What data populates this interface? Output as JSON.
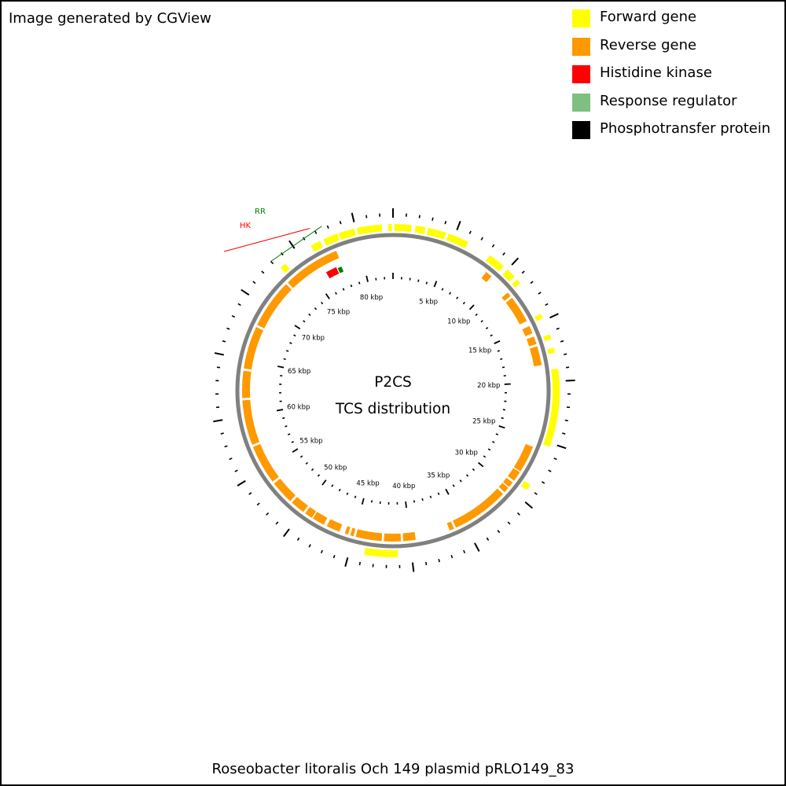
{
  "header": {
    "credit": "Image generated by CGView"
  },
  "legend": [
    {
      "label": "Forward gene",
      "color": "#ffff00"
    },
    {
      "label": "Reverse gene",
      "color": "#ff9900"
    },
    {
      "label": "Histidine kinase",
      "color": "#ff0000"
    },
    {
      "label": "Response regulator",
      "color": "#7fbf7f"
    },
    {
      "label": "Phosphotransfer protein",
      "color": "#000000"
    }
  ],
  "map": {
    "title_line1": "P2CS",
    "title_line2": "TCS distribution",
    "caption": "Roseobacter litoralis Och 149 plasmid pRLO149_83",
    "total_kbp": 83,
    "backbone_color": "#808080",
    "scale_labels": [
      "5 kbp",
      "10 kbp",
      "15 kbp",
      "20 kbp",
      "25 kbp",
      "30 kbp",
      "35 kbp",
      "40 kbp",
      "45 kbp",
      "50 kbp",
      "55 kbp",
      "60 kbp",
      "65 kbp",
      "70 kbp",
      "75 kbp",
      "80 kbp"
    ],
    "scale_positions_kbp": [
      5,
      10,
      15,
      20,
      25,
      30,
      35,
      40,
      45,
      50,
      55,
      60,
      65,
      70,
      75,
      80
    ],
    "feature_labels": [
      {
        "label": "HK",
        "color": "#ff0000"
      },
      {
        "label": "RR",
        "color": "#008000"
      }
    ],
    "forward_genes_kbp": [
      [
        0.1,
        1.5
      ],
      [
        1.8,
        2.6
      ],
      [
        2.8,
        4.3
      ],
      [
        4.5,
        6.2
      ],
      [
        8.2,
        9.6
      ],
      [
        10.0,
        10.8
      ],
      [
        11.1,
        11.5
      ],
      [
        14.4,
        14.8
      ],
      [
        16.2,
        16.6
      ],
      [
        17.3,
        17.7
      ],
      [
        19.0,
        25.3
      ],
      [
        28.7,
        29.2
      ],
      [
        41.1,
        43.8
      ],
      [
        73.2,
        73.7
      ],
      [
        76.2,
        77.0
      ],
      [
        77.3,
        78.5
      ],
      [
        78.6,
        79.9
      ],
      [
        80.1,
        82.1
      ],
      [
        82.6,
        82.9
      ]
    ],
    "reverse_genes_kbp": [
      [
        8.8,
        9.4
      ],
      [
        11.4,
        11.8
      ],
      [
        12.0,
        14.4
      ],
      [
        14.9,
        15.6
      ],
      [
        15.9,
        16.6
      ],
      [
        16.8,
        18.5
      ],
      [
        25.8,
        28.2
      ],
      [
        28.3,
        29.2
      ],
      [
        29.4,
        29.9
      ],
      [
        30.0,
        30.5
      ],
      [
        30.7,
        35.8
      ],
      [
        36.0,
        36.4
      ],
      [
        39.5,
        40.6
      ],
      [
        40.8,
        42.3
      ],
      [
        42.5,
        44.8
      ],
      [
        45.0,
        45.3
      ],
      [
        45.5,
        45.8
      ],
      [
        46.3,
        47.5
      ],
      [
        47.8,
        48.9
      ],
      [
        49.0,
        49.7
      ],
      [
        49.9,
        51.2
      ],
      [
        51.4,
        53.5
      ],
      [
        53.7,
        57.2
      ],
      [
        57.4,
        61.4
      ],
      [
        61.6,
        64.0
      ],
      [
        64.2,
        68.0
      ],
      [
        68.2,
        72.6
      ],
      [
        72.8,
        77.9
      ]
    ],
    "histidine_kinase_kbp": [
      [
        76.2,
        77.3
      ]
    ],
    "response_regulator_kbp": [
      [
        77.4,
        77.8
      ]
    ]
  }
}
